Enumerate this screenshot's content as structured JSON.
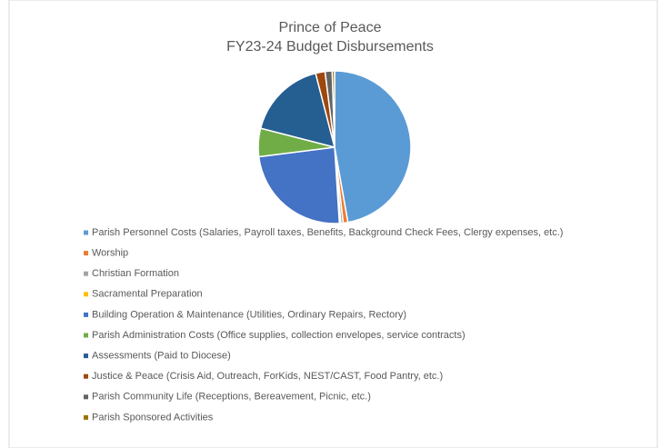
{
  "chart_data": {
    "type": "pie",
    "title": "Prince of Peace",
    "subtitle": "FY23-24 Budget Disbursements",
    "categories": [
      "Parish Personnel Costs (Salaries, Payroll taxes, Benefits, Background Check Fees, Clergy expenses, etc.)",
      "Worship",
      "Christian Formation",
      "Sacramental Preparation",
      "Building Operation & Maintenance (Utilities, Ordinary Repairs, Rectory)",
      "Parish Administration Costs (Office supplies, collection envelopes, service contracts)",
      "Assessments (Paid to Diocese)",
      "Justice & Peace (Crisis Aid, Outreach, ForKids, NEST/CAST, Food Pantry, etc.)",
      "Parish Community Life (Receptions, Bereavement, Picnic, etc.)",
      "Parish Sponsored Activities"
    ],
    "values": [
      47.2,
      1,
      0.5,
      0.3,
      24,
      6,
      17,
      2,
      1.5,
      0.5
    ],
    "colors": [
      "#5b9bd5",
      "#ed7d31",
      "#a5a5a5",
      "#ffc000",
      "#4472c4",
      "#70ad47",
      "#255e91",
      "#9e480e",
      "#636363",
      "#997300"
    ],
    "legend": "bottom"
  }
}
